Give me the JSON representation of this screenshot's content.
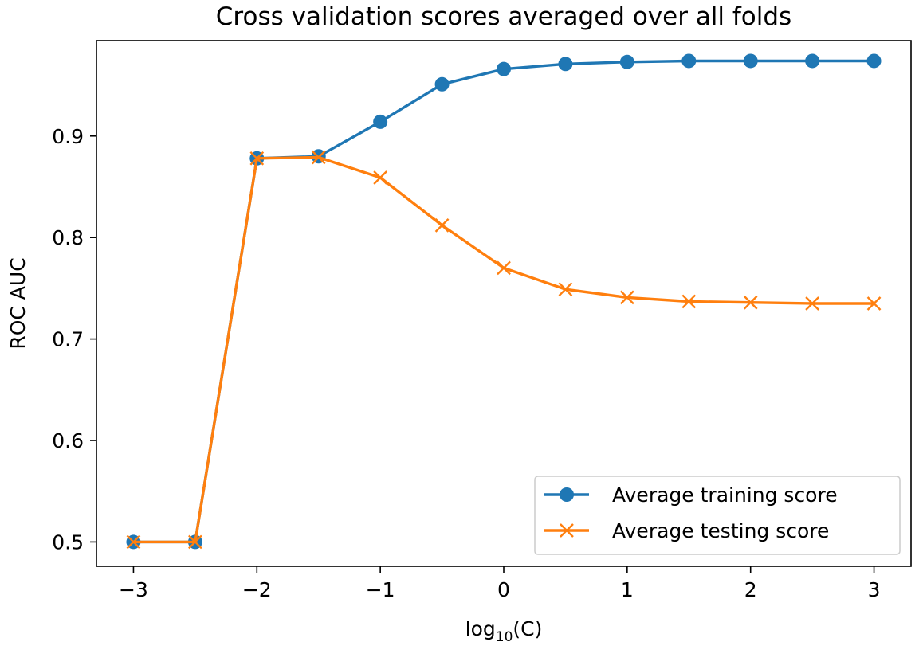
{
  "chart_data": {
    "type": "line",
    "title": "Cross validation scores averaged over all folds",
    "xlabel": "log",
    "xlabel_sub": "10",
    "xlabel_suffix": "(C)",
    "ylabel": "ROC AUC",
    "xlim": [
      -3.3,
      3.3
    ],
    "ylim": [
      0.476,
      0.994
    ],
    "x": [
      -3,
      -2.5,
      -2,
      -1.5,
      -1,
      -0.5,
      0,
      0.5,
      1,
      1.5,
      2,
      2.5,
      3
    ],
    "x_ticks": [
      -3,
      -2,
      -1,
      0,
      1,
      2,
      3
    ],
    "x_tick_labels": [
      "−3",
      "−2",
      "−1",
      "0",
      "1",
      "2",
      "3"
    ],
    "y_ticks": [
      0.5,
      0.6,
      0.7,
      0.8,
      0.9
    ],
    "y_tick_labels": [
      "0.5",
      "0.6",
      "0.7",
      "0.8",
      "0.9"
    ],
    "grid": false,
    "legend_position": "bottom-right",
    "series": [
      {
        "name": "Average training score",
        "color": "#1f77b4",
        "marker": "circle",
        "values": [
          0.5,
          0.5,
          0.878,
          0.88,
          0.914,
          0.951,
          0.966,
          0.971,
          0.973,
          0.974,
          0.974,
          0.974,
          0.974
        ]
      },
      {
        "name": "Average testing score",
        "color": "#ff7f0e",
        "marker": "x",
        "values": [
          0.5,
          0.5,
          0.878,
          0.879,
          0.859,
          0.812,
          0.77,
          0.749,
          0.741,
          0.737,
          0.736,
          0.735,
          0.735
        ]
      }
    ]
  }
}
